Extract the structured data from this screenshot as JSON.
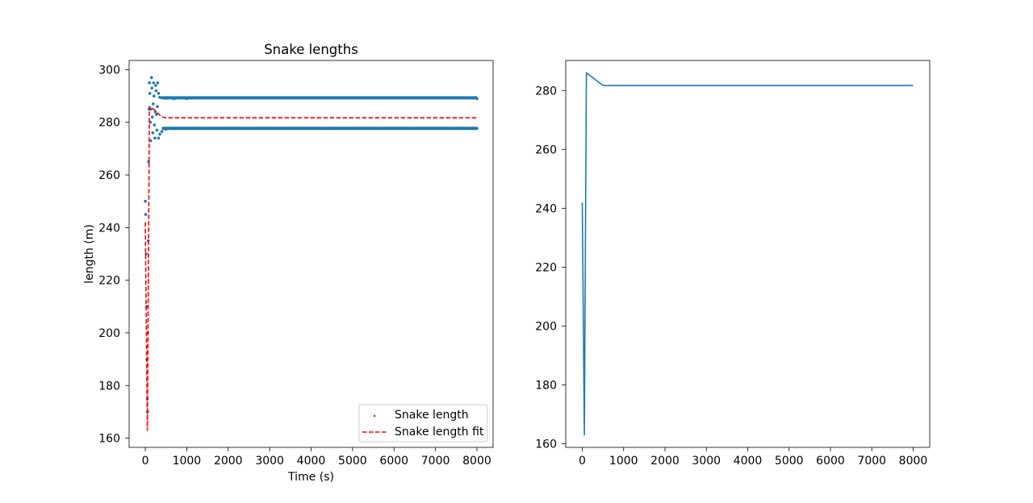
{
  "chart_data": [
    {
      "type": "scatter",
      "title": "Snake lengths",
      "xlabel": "Time (s)",
      "ylabel": "length (m)",
      "xlim": [
        -390,
        8390
      ],
      "ylim": [
        156.5,
        303.5
      ],
      "xticks": [
        0,
        1000,
        2000,
        3000,
        4000,
        5000,
        6000,
        7000,
        8000
      ],
      "yticks": [
        160,
        180,
        200,
        220,
        240,
        260,
        280,
        300
      ],
      "legend_position": "lower-right",
      "series": [
        {
          "name": "Snake length",
          "kind": "scatter",
          "color": "#1f77b4",
          "points": [
            [
              0,
              250
            ],
            [
              10,
              245
            ],
            [
              20,
              230
            ],
            [
              30,
              210
            ],
            [
              40,
              190
            ],
            [
              50,
              175
            ],
            [
              55,
              170
            ],
            [
              60,
              200
            ],
            [
              70,
              235
            ],
            [
              80,
              265
            ],
            [
              90,
              285
            ],
            [
              100,
              295
            ],
            [
              110,
              291
            ],
            [
              120,
              280
            ],
            [
              130,
              273
            ],
            [
              140,
              285
            ],
            [
              150,
              297
            ],
            [
              160,
              293
            ],
            [
              170,
              282
            ],
            [
              180,
              276
            ],
            [
              190,
              287
            ],
            [
              200,
              295
            ],
            [
              210,
              290
            ],
            [
              220,
              279
            ],
            [
              230,
              274
            ],
            [
              240,
              284
            ],
            [
              250,
              294
            ],
            [
              260,
              292
            ],
            [
              270,
              283
            ],
            [
              280,
              277
            ],
            [
              290,
              286
            ],
            [
              300,
              295
            ],
            [
              320,
              291
            ],
            [
              350,
              289.5
            ],
            [
              400,
              289.3
            ],
            [
              500,
              289.1
            ],
            [
              700,
              289
            ],
            [
              1000,
              289
            ],
            [
              8000,
              289
            ],
            [
              320,
              274
            ],
            [
              350,
              275.5
            ],
            [
              400,
              276.5
            ],
            [
              500,
              277.3
            ],
            [
              700,
              277.6
            ],
            [
              1000,
              277.7
            ],
            [
              8000,
              277.7
            ]
          ],
          "upper_band": [
            [
              400,
              289.3
            ],
            [
              8000,
              289.3
            ]
          ],
          "lower_band": [
            [
              400,
              277.7
            ],
            [
              8000,
              277.7
            ]
          ]
        },
        {
          "name": "Snake length fit",
          "kind": "line",
          "style": "dashed",
          "color": "#ff0000",
          "points": [
            [
              0,
              242
            ],
            [
              50,
              163
            ],
            [
              100,
              286
            ],
            [
              200,
              285
            ],
            [
              300,
              283.5
            ],
            [
              400,
              282
            ],
            [
              500,
              281.7
            ],
            [
              8000,
              281.7
            ]
          ]
        }
      ]
    },
    {
      "type": "line",
      "title": "",
      "xlabel": "",
      "ylabel": "",
      "xlim": [
        -400,
        8400
      ],
      "ylim": [
        158.8,
        290.2
      ],
      "xticks": [
        0,
        1000,
        2000,
        3000,
        4000,
        5000,
        6000,
        7000,
        8000
      ],
      "yticks": [
        160,
        180,
        200,
        220,
        240,
        260,
        280
      ],
      "series": [
        {
          "color": "#1f77b4",
          "points": [
            [
              0,
              242
            ],
            [
              50,
              163
            ],
            [
              100,
              286
            ],
            [
              500,
              281.7
            ],
            [
              8000,
              281.7
            ]
          ]
        }
      ]
    }
  ]
}
